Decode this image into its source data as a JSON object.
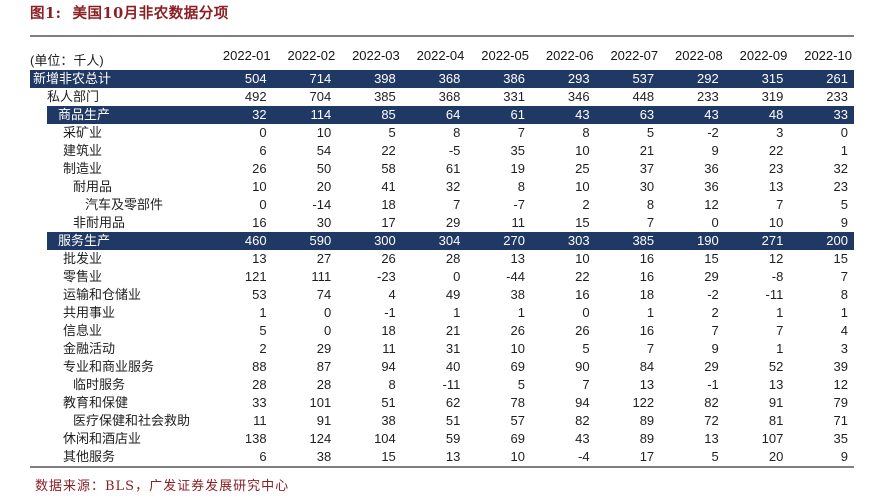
{
  "title": "图1:  美国10月非农数据分项",
  "table": {
    "unit_label": "(单位：千人)",
    "columns": [
      "2022-01",
      "2022-02",
      "2022-03",
      "2022-04",
      "2022-05",
      "2022-06",
      "2022-07",
      "2022-08",
      "2022-09",
      "2022-10"
    ],
    "rows": [
      {
        "label": "新增非农总计",
        "indent": 0,
        "highlight": "full",
        "values": [
          504,
          714,
          398,
          368,
          386,
          293,
          537,
          292,
          315,
          261
        ]
      },
      {
        "label": "私人部门",
        "indent": 1,
        "highlight": null,
        "values": [
          492,
          704,
          385,
          368,
          331,
          346,
          448,
          233,
          319,
          233
        ]
      },
      {
        "label": "商品生产",
        "indent": 2,
        "highlight": "indent",
        "values": [
          32,
          114,
          85,
          64,
          61,
          43,
          63,
          43,
          48,
          33
        ]
      },
      {
        "label": "采矿业",
        "indent": 3,
        "highlight": null,
        "values": [
          0,
          10,
          5,
          8,
          7,
          8,
          5,
          -2,
          3,
          0
        ]
      },
      {
        "label": "建筑业",
        "indent": 3,
        "highlight": null,
        "values": [
          6,
          54,
          22,
          -5,
          35,
          10,
          21,
          9,
          22,
          1
        ]
      },
      {
        "label": "制造业",
        "indent": 3,
        "highlight": null,
        "values": [
          26,
          50,
          58,
          61,
          19,
          25,
          37,
          36,
          23,
          32
        ]
      },
      {
        "label": "耐用品",
        "indent": 4,
        "highlight": null,
        "values": [
          10,
          20,
          41,
          32,
          8,
          10,
          30,
          36,
          13,
          23
        ]
      },
      {
        "label": "汽车及零部件",
        "indent": 5,
        "highlight": null,
        "values": [
          0,
          -14,
          18,
          7,
          -7,
          2,
          8,
          12,
          7,
          5
        ]
      },
      {
        "label": "非耐用品",
        "indent": 4,
        "highlight": null,
        "values": [
          16,
          30,
          17,
          29,
          11,
          15,
          7,
          0,
          10,
          9
        ]
      },
      {
        "label": "服务生产",
        "indent": 2,
        "highlight": "indent",
        "values": [
          460,
          590,
          300,
          304,
          270,
          303,
          385,
          190,
          271,
          200
        ]
      },
      {
        "label": "批发业",
        "indent": 3,
        "highlight": null,
        "values": [
          13,
          27,
          26,
          28,
          13,
          10,
          16,
          15,
          12,
          15
        ]
      },
      {
        "label": "零售业",
        "indent": 3,
        "highlight": null,
        "values": [
          121,
          111,
          -23,
          0,
          -44,
          22,
          16,
          29,
          -8,
          7
        ]
      },
      {
        "label": "运输和仓储业",
        "indent": 3,
        "highlight": null,
        "values": [
          53,
          74,
          4,
          49,
          38,
          16,
          18,
          -2,
          -11,
          8
        ]
      },
      {
        "label": "共用事业",
        "indent": 3,
        "highlight": null,
        "values": [
          1,
          0,
          -1,
          1,
          1,
          0,
          1,
          2,
          1,
          1
        ]
      },
      {
        "label": "信息业",
        "indent": 3,
        "highlight": null,
        "values": [
          5,
          0,
          18,
          21,
          26,
          26,
          16,
          7,
          7,
          4
        ]
      },
      {
        "label": "金融活动",
        "indent": 3,
        "highlight": null,
        "values": [
          2,
          29,
          11,
          31,
          10,
          5,
          7,
          9,
          1,
          3
        ]
      },
      {
        "label": "专业和商业服务",
        "indent": 3,
        "highlight": null,
        "values": [
          88,
          87,
          94,
          40,
          69,
          90,
          84,
          29,
          52,
          39
        ]
      },
      {
        "label": "临时服务",
        "indent": 4,
        "highlight": null,
        "values": [
          28,
          28,
          8,
          -11,
          5,
          7,
          13,
          -1,
          13,
          12
        ]
      },
      {
        "label": "教育和保健",
        "indent": 3,
        "highlight": null,
        "values": [
          33,
          101,
          51,
          62,
          78,
          94,
          122,
          82,
          91,
          79
        ]
      },
      {
        "label": "医疗保健和社会救助",
        "indent": 4,
        "highlight": null,
        "values": [
          11,
          91,
          38,
          51,
          57,
          82,
          89,
          72,
          81,
          71
        ]
      },
      {
        "label": "休闲和酒店业",
        "indent": 3,
        "highlight": null,
        "values": [
          138,
          124,
          104,
          59,
          69,
          43,
          89,
          13,
          107,
          35
        ]
      },
      {
        "label": "其他服务",
        "indent": 3,
        "highlight": null,
        "values": [
          6,
          38,
          15,
          13,
          10,
          -4,
          17,
          5,
          20,
          9
        ]
      }
    ]
  },
  "footer": {
    "source_text": "数据来源：BLS，广发证券发展研究中心"
  },
  "colors": {
    "band_bg": "#1F3864",
    "band_text": "#FFFFFF",
    "title_red": "#8A2025",
    "rule_gray": "#7F7F7F"
  }
}
